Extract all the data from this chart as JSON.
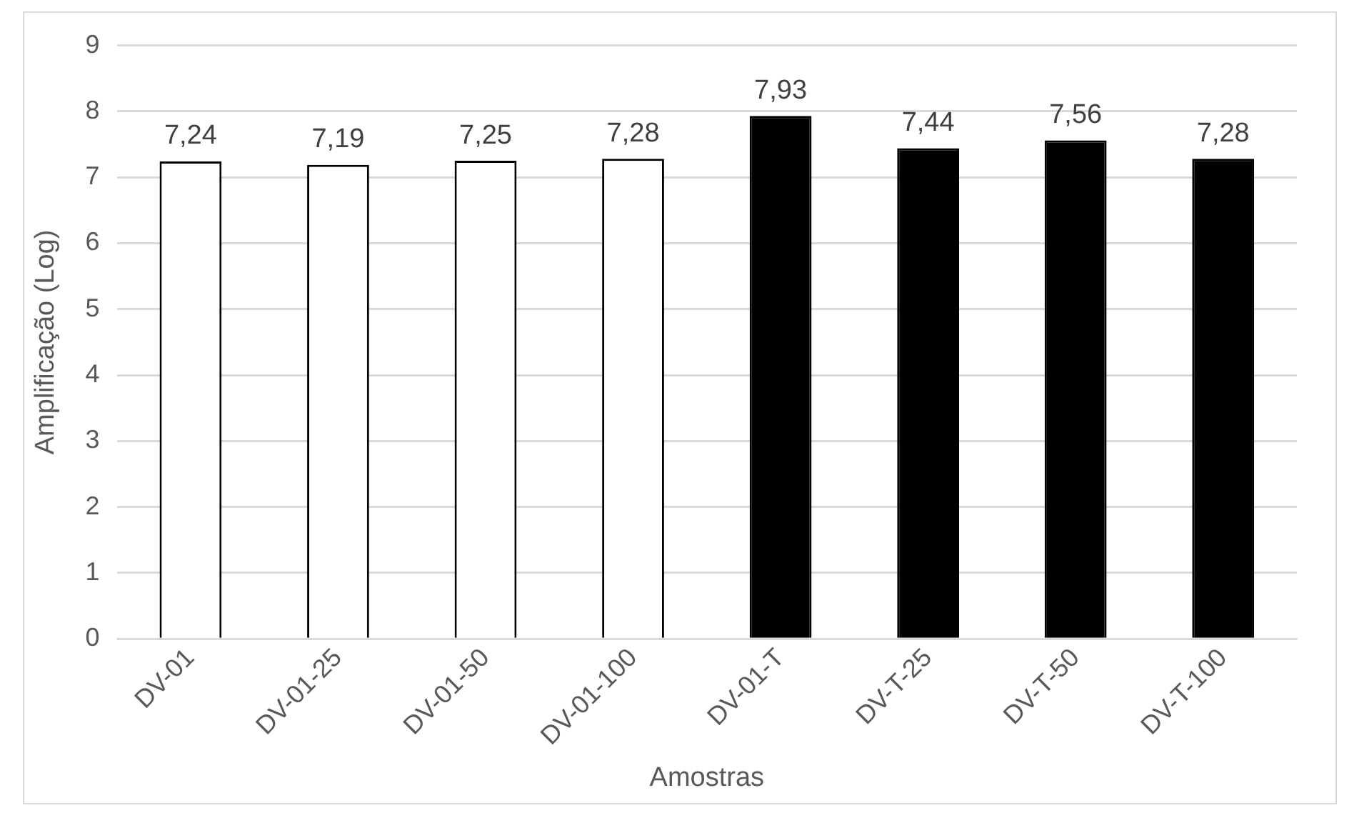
{
  "chart_data": {
    "type": "bar",
    "xlabel": "Amostras",
    "ylabel": "Amplificação (Log)",
    "categories": [
      "DV-01",
      "DV-01-25",
      "DV-01-50",
      "DV-01-100",
      "DV-01-T",
      "DV-T-25",
      "DV-T-50",
      "DV-T-100"
    ],
    "values": [
      7.24,
      7.19,
      7.25,
      7.28,
      7.93,
      7.44,
      7.56,
      7.28
    ],
    "colors": [
      "#ffffff",
      "#ffffff",
      "#ffffff",
      "#ffffff",
      "#000000",
      "#000000",
      "#000000",
      "#000000"
    ],
    "value_labels": [
      "7,24",
      "7,19",
      "7,25",
      "7,28",
      "7,93",
      "7,44",
      "7,56",
      "7,28"
    ],
    "ylim": [
      0,
      9
    ],
    "yticks": [
      0,
      1,
      2,
      3,
      4,
      5,
      6,
      7,
      8,
      9
    ],
    "grid": "y",
    "legend": false
  }
}
